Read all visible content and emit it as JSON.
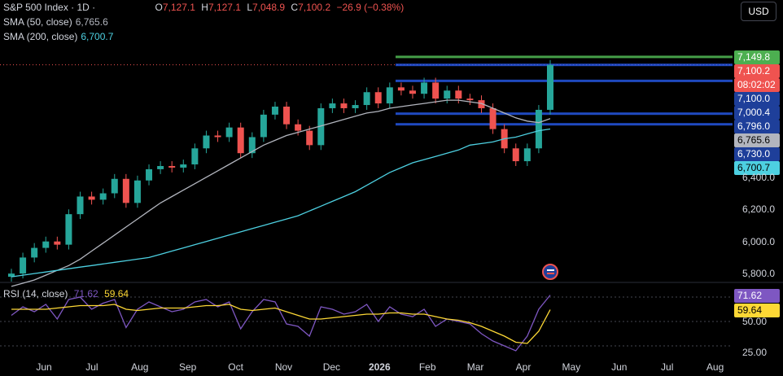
{
  "header": {
    "symbol_label": "S&P 500 Index · 1D ·",
    "ohlc": [
      {
        "k": "O",
        "v": "7,127.1"
      },
      {
        "k": "H",
        "v": "7,127.1"
      },
      {
        "k": "L",
        "v": "7,048.9"
      },
      {
        "k": "C",
        "v": "7,100.2"
      }
    ],
    "change": "−26.9 (−0.38%)",
    "sma50_label": "SMA (50, close)",
    "sma50_value": "6,765.6",
    "sma200_label": "SMA (200, close)",
    "sma200_value": "6,700.7",
    "currency": "USD"
  },
  "rsi_legend": {
    "label": "RSI (14, close)",
    "v1": "71.62",
    "v2": "59.64"
  },
  "price_tags": [
    {
      "text": "7,149.8",
      "bg": "#4caf50",
      "fg": "#ffffff"
    },
    {
      "text": "7,100.2",
      "bg": "#ef5350",
      "fg": "#ffffff"
    },
    {
      "text": "08:02:02",
      "bg": "#ef5350",
      "fg": "#ffffff"
    },
    {
      "text": "7,100.0",
      "bg": "#1e3f9a",
      "fg": "#ffffff"
    },
    {
      "text": "7,000.4",
      "bg": "#1e3f9a",
      "fg": "#ffffff"
    },
    {
      "text": "6,796.0",
      "bg": "#1e3f9a",
      "fg": "#ffffff"
    },
    {
      "text": "6,765.6",
      "bg": "#b2b5be",
      "fg": "#000000"
    },
    {
      "text": "6,730.0",
      "bg": "#1e3f9a",
      "fg": "#ffffff"
    },
    {
      "text": "6,700.7",
      "bg": "#4dd0e1",
      "fg": "#000000"
    }
  ],
  "price_axis": [
    "6,400.0",
    "6,200.0",
    "6,000.0",
    "5,800.0"
  ],
  "rsi_axis": [
    "50.00",
    "25.00"
  ],
  "rsi_tags": [
    {
      "text": "71.62",
      "bg": "#7e57c2",
      "fg": "#ffffff"
    },
    {
      "text": "59.64",
      "bg": "#fdd835",
      "fg": "#000000"
    }
  ],
  "time_axis": [
    "Jun",
    "Jul",
    "Aug",
    "Sep",
    "Oct",
    "Nov",
    "Dec",
    "2026",
    "Feb",
    "Mar",
    "Apr",
    "May",
    "Jun",
    "Jul",
    "Aug"
  ],
  "colors": {
    "up": "#26a69a",
    "down": "#ef5350",
    "sma50": "#b2b5be",
    "sma200": "#4dd0e1",
    "rsi": "#7e57c2",
    "rsi_ma": "#fdd835",
    "level_line": "#2962ff",
    "resistance": "#4caf50"
  },
  "chart_data": {
    "type": "candlestick",
    "title": "S&P 500 Index · 1D",
    "ylim": [
      5750,
      7200
    ],
    "x": [
      "2025-05-19",
      "2025-05-26",
      "2025-06-02",
      "2025-06-09",
      "2025-06-16",
      "2025-06-23",
      "2025-06-30",
      "2025-07-07",
      "2025-07-14",
      "2025-07-21",
      "2025-07-28",
      "2025-08-04",
      "2025-08-11",
      "2025-08-18",
      "2025-08-25",
      "2025-09-01",
      "2025-09-08",
      "2025-09-15",
      "2025-09-22",
      "2025-09-29",
      "2025-10-06",
      "2025-10-13",
      "2025-10-20",
      "2025-10-27",
      "2025-11-03",
      "2025-11-10",
      "2025-11-17",
      "2025-11-24",
      "2025-12-01",
      "2025-12-08",
      "2025-12-15",
      "2025-12-22",
      "2025-12-29",
      "2026-01-05",
      "2026-01-12",
      "2026-01-19",
      "2026-01-26",
      "2026-02-02",
      "2026-02-09",
      "2026-02-16",
      "2026-02-23",
      "2026-03-02",
      "2026-03-09",
      "2026-03-16",
      "2026-03-23",
      "2026-03-30",
      "2026-04-06",
      "2026-04-13"
    ],
    "series": [
      {
        "name": "S&P 500 Index",
        "values": [
          5800,
          5900,
          5960,
          6000,
          5980,
          6170,
          6280,
          6260,
          6300,
          6390,
          6240,
          6380,
          6450,
          6470,
          6460,
          6480,
          6580,
          6660,
          6650,
          6710,
          6550,
          6650,
          6790,
          6840,
          6730,
          6690,
          6600,
          6830,
          6860,
          6830,
          6850,
          6930,
          6860,
          6960,
          6940,
          6920,
          6990,
          6890,
          6940,
          6890,
          6880,
          6830,
          6700,
          6580,
          6500,
          6580,
          6820,
          7100
        ]
      },
      {
        "name": "SMA (50, close)",
        "values": [
          5720,
          5740,
          5760,
          5790,
          5820,
          5850,
          5890,
          5940,
          5990,
          6040,
          6090,
          6140,
          6190,
          6240,
          6280,
          6320,
          6360,
          6400,
          6440,
          6480,
          6520,
          6560,
          6600,
          6630,
          6660,
          6680,
          6700,
          6720,
          6740,
          6760,
          6780,
          6800,
          6810,
          6830,
          6840,
          6850,
          6860,
          6870,
          6880,
          6880,
          6870,
          6860,
          6830,
          6800,
          6770,
          6750,
          6740,
          6765.6
        ]
      },
      {
        "name": "SMA (200, close)",
        "values": [
          5780,
          5790,
          5800,
          5810,
          5820,
          5830,
          5840,
          5850,
          5860,
          5870,
          5880,
          5890,
          5900,
          5920,
          5940,
          5960,
          5980,
          6000,
          6020,
          6040,
          6060,
          6080,
          6100,
          6120,
          6140,
          6160,
          6190,
          6220,
          6250,
          6280,
          6310,
          6350,
          6390,
          6430,
          6460,
          6490,
          6510,
          6530,
          6550,
          6570,
          6600,
          6610,
          6620,
          6640,
          6650,
          6670,
          6690,
          6700.7
        ]
      }
    ],
    "levels": [
      7149.8,
      7100.0,
      7000.4,
      6796.0,
      6730.0
    ],
    "rsi": {
      "label": "RSI (14, close)",
      "ylim": [
        20,
        80
      ],
      "rsi_values": [
        55,
        62,
        58,
        64,
        52,
        68,
        70,
        60,
        65,
        68,
        45,
        60,
        66,
        62,
        58,
        60,
        66,
        68,
        62,
        66,
        44,
        58,
        68,
        66,
        48,
        46,
        38,
        62,
        60,
        56,
        58,
        64,
        50,
        62,
        56,
        54,
        60,
        46,
        52,
        50,
        48,
        40,
        34,
        30,
        26,
        38,
        60,
        71.62
      ],
      "rsi_ma_values": [
        60,
        60,
        60,
        60,
        61,
        62,
        63,
        63,
        63,
        64,
        60,
        59,
        60,
        61,
        61,
        61,
        62,
        63,
        63,
        64,
        60,
        59,
        60,
        61,
        58,
        55,
        52,
        52,
        53,
        54,
        55,
        56,
        56,
        57,
        57,
        56,
        56,
        54,
        52,
        51,
        49,
        46,
        42,
        38,
        33,
        32,
        42,
        59.64
      ]
    }
  }
}
